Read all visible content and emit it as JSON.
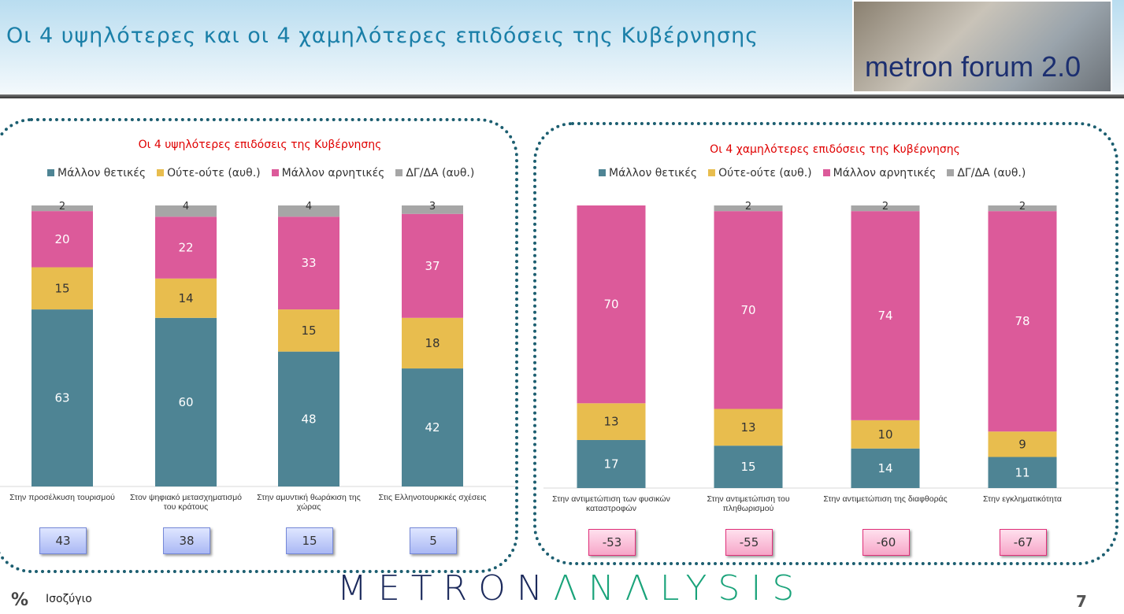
{
  "header": {
    "title": "Οι 4 υψηλότερες και οι 4 χαμηλότερες επιδόσεις της Κυβέρνησης",
    "logo_text": "metron forum 2.0"
  },
  "colors": {
    "positive": "#4e8494",
    "neutral": "#e8bd4e",
    "negative": "#dc5a9a",
    "dk": "#a6a6a6"
  },
  "chart_data": [
    {
      "type": "bar",
      "stacked": true,
      "title": "Οι 4 υψηλότερες επιδόσεις της Κυβέρνησης",
      "legend": [
        "Μάλλον θετικές",
        "Ούτε-ούτε  (αυθ.)",
        "Μάλλον αρνητικές",
        "ΔΓ/ΔΑ (αυθ.)"
      ],
      "categories": [
        "Στην προσέλκυση τουρισμού",
        "Στον ψηφιακό μετασχηματισμό του κράτους",
        "Στην αμυντική θωράκιση της χώρας",
        "Στις Ελληνοτουρκικές σχέσεις"
      ],
      "series": [
        {
          "name": "Μάλλον θετικές",
          "values": [
            63,
            60,
            48,
            42
          ]
        },
        {
          "name": "Ούτε-ούτε  (αυθ.)",
          "values": [
            15,
            14,
            15,
            18
          ]
        },
        {
          "name": "Μάλλον αρνητικές",
          "values": [
            20,
            22,
            33,
            37
          ]
        },
        {
          "name": "ΔΓ/ΔΑ (αυθ.)",
          "values": [
            2,
            4,
            4,
            3
          ]
        }
      ],
      "balance": [
        "43",
        "38",
        "15",
        "5"
      ],
      "ylim": [
        0,
        100
      ]
    },
    {
      "type": "bar",
      "stacked": true,
      "title": "Οι 4 χαμηλότερες επιδόσεις της Κυβέρνησης",
      "legend": [
        "Μάλλον θετικές",
        "Ούτε-ούτε  (αυθ.)",
        "Μάλλον αρνητικές",
        "ΔΓ/ΔΑ (αυθ.)"
      ],
      "categories": [
        "Στην αντιμετώπιση των φυσικών καταστροφών",
        "Στην αντιμετώπιση του πληθωρισμού",
        "Στην αντιμετώπιση της διαφθοράς",
        "Στην εγκληματικότητα"
      ],
      "series": [
        {
          "name": "Μάλλον θετικές",
          "values": [
            17,
            15,
            14,
            11
          ]
        },
        {
          "name": "Ούτε-ούτε  (αυθ.)",
          "values": [
            13,
            13,
            10,
            9
          ]
        },
        {
          "name": "Μάλλον αρνητικές",
          "values": [
            70,
            70,
            74,
            78
          ]
        },
        {
          "name": "ΔΓ/ΔΑ (αυθ.)",
          "values": [
            null,
            2,
            2,
            2
          ]
        }
      ],
      "balance": [
        "-53",
        "-55",
        "-60",
        "-67"
      ],
      "ylim": [
        0,
        100
      ]
    }
  ],
  "footer": {
    "pct": "%",
    "label": "Ισοζύγιο",
    "brand_a": "METRON",
    "brand_b": "ΛNΛLYSIS",
    "page": "7"
  }
}
